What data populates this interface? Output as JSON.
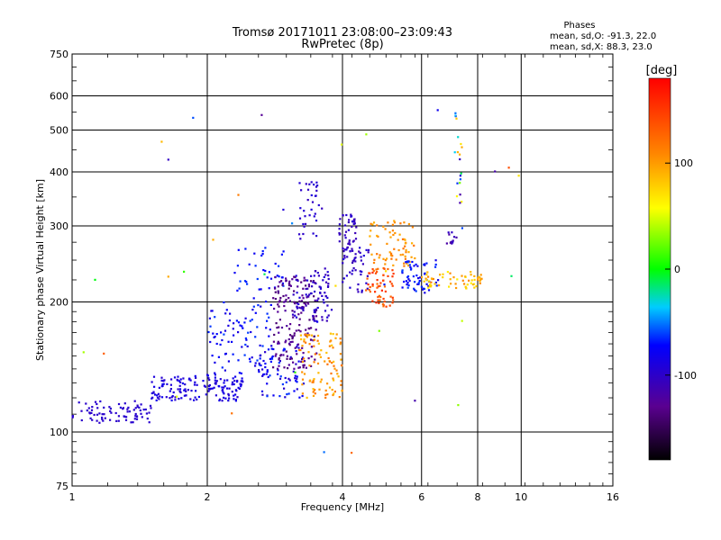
{
  "chart_data": {
    "type": "scatter",
    "title": "Tromsø 20171011 23:08:00–23:09:43",
    "subtitle": "RwPretec (8p)",
    "xlabel": "Frequency [MHz]",
    "ylabel": "Stationary phase Virtual Height [km]",
    "x_scale": "log",
    "y_scale": "log",
    "xlim": [
      1,
      16
    ],
    "ylim": [
      75,
      750
    ],
    "x_ticks": [
      1,
      2,
      4,
      6,
      8,
      10,
      16
    ],
    "x_tick_labels": [
      "1",
      "2",
      "4",
      "6",
      "8",
      "10",
      "16"
    ],
    "x_grid": [
      2,
      4,
      6,
      8,
      10
    ],
    "y_ticks": [
      75,
      100,
      200,
      300,
      400,
      500,
      600,
      750
    ],
    "y_tick_labels": [
      "75",
      "100",
      "200",
      "300",
      "400",
      "500",
      "600",
      "750"
    ],
    "y_grid": [
      100,
      200,
      300,
      400,
      500,
      600
    ],
    "grid": true,
    "stats": {
      "header": "Phases",
      "line1": "mean, sd,O: -91.3, 22.0",
      "line2": "mean, sd,X:  88.3, 23.0"
    },
    "colorbar": {
      "label": "[deg]",
      "range": [
        -180,
        180
      ],
      "ticks": [
        100,
        0,
        -100
      ],
      "tick_labels": [
        "100",
        "0",
        "-100"
      ]
    },
    "point_clusters": [
      {
        "x0": 1.0,
        "x1": 1.5,
        "y0": 105,
        "y1": 118,
        "phase0": -95,
        "phase1": -100,
        "n": 80
      },
      {
        "x0": 1.5,
        "x1": 2.4,
        "y0": 118,
        "y1": 135,
        "phase0": -100,
        "phase1": -80,
        "n": 150
      },
      {
        "x0": 2.0,
        "x1": 2.8,
        "y0": 135,
        "y1": 200,
        "phase0": -90,
        "phase1": -60,
        "n": 90
      },
      {
        "x0": 2.3,
        "x1": 3.0,
        "y0": 200,
        "y1": 270,
        "phase0": -80,
        "phase1": -60,
        "n": 40
      },
      {
        "x0": 2.6,
        "x1": 3.3,
        "y0": 120,
        "y1": 160,
        "phase0": -100,
        "phase1": -60,
        "n": 70
      },
      {
        "x0": 2.8,
        "x1": 3.5,
        "y0": 140,
        "y1": 230,
        "phase0": -140,
        "phase1": -120,
        "n": 170
      },
      {
        "x0": 3.1,
        "x1": 3.8,
        "y0": 180,
        "y1": 240,
        "phase0": -110,
        "phase1": -90,
        "n": 80
      },
      {
        "x0": 3.2,
        "x1": 3.6,
        "y0": 280,
        "y1": 380,
        "phase0": -105,
        "phase1": -90,
        "n": 35
      },
      {
        "x0": 3.2,
        "x1": 4.0,
        "y0": 120,
        "y1": 170,
        "phase0": 80,
        "phase1": 120,
        "n": 100
      },
      {
        "x0": 3.9,
        "x1": 4.3,
        "y0": 240,
        "y1": 320,
        "phase0": -110,
        "phase1": -95,
        "n": 50
      },
      {
        "x0": 4.0,
        "x1": 4.6,
        "y0": 210,
        "y1": 270,
        "phase0": -110,
        "phase1": -90,
        "n": 40
      },
      {
        "x0": 4.5,
        "x1": 5.2,
        "y0": 195,
        "y1": 240,
        "phase0": 120,
        "phase1": 160,
        "n": 60
      },
      {
        "x0": 4.6,
        "x1": 5.8,
        "y0": 240,
        "y1": 310,
        "phase0": 90,
        "phase1": 120,
        "n": 70
      },
      {
        "x0": 5.4,
        "x1": 6.6,
        "y0": 210,
        "y1": 250,
        "phase0": -90,
        "phase1": -60,
        "n": 60
      },
      {
        "x0": 6.0,
        "x1": 8.2,
        "y0": 215,
        "y1": 235,
        "phase0": 60,
        "phase1": 110,
        "n": 60
      },
      {
        "x0": 6.8,
        "x1": 7.2,
        "y0": 270,
        "y1": 290,
        "phase0": -120,
        "phase1": -100,
        "n": 12
      },
      {
        "x0": 7.1,
        "x1": 7.4,
        "y0": 330,
        "y1": 570,
        "phase0": -130,
        "phase1": 100,
        "n": 20
      },
      {
        "x0": 1.0,
        "x1": 10.0,
        "y0": 85,
        "y1": 560,
        "phase0": -140,
        "phase1": 150,
        "n": 35
      }
    ]
  }
}
